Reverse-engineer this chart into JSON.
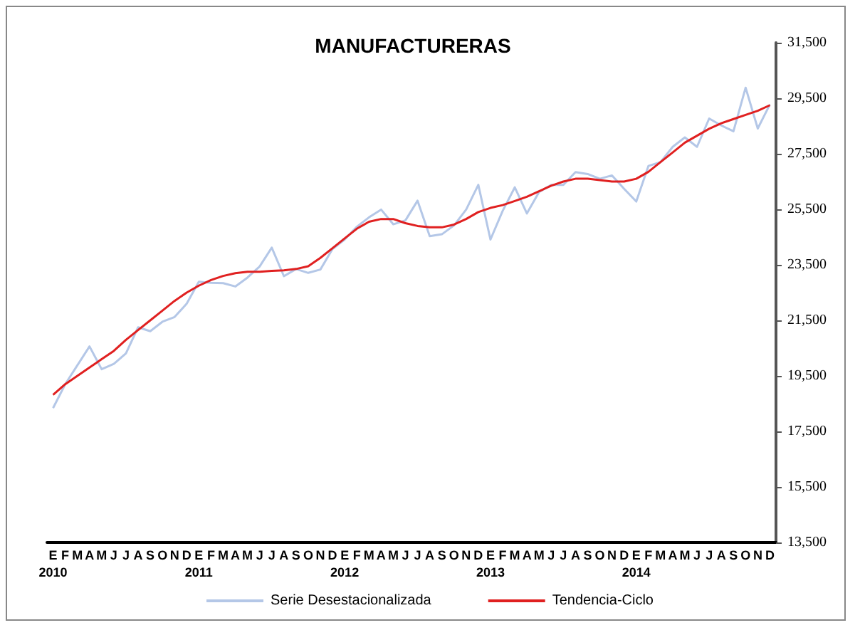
{
  "chart_data": {
    "type": "line",
    "title": "MANUFACTURERAS",
    "categories": [
      "E\n2010",
      "F",
      "M",
      "A",
      "M",
      "J",
      "J",
      "A",
      "S",
      "O",
      "N",
      "D",
      "E\n2011",
      "F",
      "M",
      "A",
      "M",
      "J",
      "J",
      "A",
      "S",
      "O",
      "N",
      "D",
      "E\n2012",
      "F",
      "M",
      "A",
      "M",
      "J",
      "J",
      "A",
      "S",
      "O",
      "N",
      "D",
      "E\n2013",
      "F",
      "M",
      "A",
      "M",
      "J",
      "J",
      "A",
      "S",
      "O",
      "N",
      "D",
      "E\n2014",
      "F",
      "M",
      "A",
      "M",
      "J",
      "J",
      "A",
      "S",
      "O",
      "N",
      "D"
    ],
    "series": [
      {
        "name": "Serie Desestacionalizada",
        "color": "#b4c7e7",
        "values": [
          18340,
          19200,
          19880,
          20560,
          19740,
          19930,
          20310,
          21250,
          21110,
          21450,
          21620,
          22100,
          22890,
          22850,
          22840,
          22720,
          23040,
          23440,
          24120,
          23090,
          23350,
          23210,
          23330,
          24070,
          24410,
          24870,
          25210,
          25490,
          24960,
          25100,
          25810,
          24530,
          24600,
          24920,
          25490,
          26380,
          24410,
          25440,
          26290,
          25350,
          26120,
          26380,
          26380,
          26840,
          26770,
          26600,
          26720,
          26240,
          25780,
          27060,
          27200,
          27750,
          28090,
          27750,
          28770,
          28520,
          28310,
          29880,
          28410,
          29280
        ]
      },
      {
        "name": "Tendencia-Ciclo",
        "color": "#e02020",
        "values": [
          18820,
          19200,
          19500,
          19800,
          20100,
          20400,
          20800,
          21150,
          21500,
          21850,
          22200,
          22500,
          22750,
          22950,
          23100,
          23200,
          23250,
          23250,
          23280,
          23300,
          23350,
          23450,
          23750,
          24100,
          24450,
          24800,
          25050,
          25150,
          25150,
          25000,
          24900,
          24850,
          24850,
          24950,
          25150,
          25400,
          25550,
          25650,
          25800,
          25950,
          26150,
          26350,
          26500,
          26600,
          26600,
          26550,
          26500,
          26500,
          26600,
          26850,
          27200,
          27550,
          27900,
          28150,
          28400,
          28600,
          28750,
          28900,
          29050,
          29250
        ]
      }
    ],
    "ylim": [
      13500,
      31500
    ],
    "yticks": [
      {
        "value": 13500,
        "label": "13,500"
      },
      {
        "value": 15500,
        "label": "15,500"
      },
      {
        "value": 17500,
        "label": "17,500"
      },
      {
        "value": 19500,
        "label": "19,500"
      },
      {
        "value": 21500,
        "label": "21,500"
      },
      {
        "value": 23500,
        "label": "23,500"
      },
      {
        "value": 25500,
        "label": "25,500"
      },
      {
        "value": 27500,
        "label": "27,500"
      },
      {
        "value": 29500,
        "label": "29,500"
      },
      {
        "value": 31500,
        "label": "31,500"
      }
    ],
    "grid": false,
    "legend": "bottom",
    "marker": "none",
    "line_style": "solid"
  }
}
